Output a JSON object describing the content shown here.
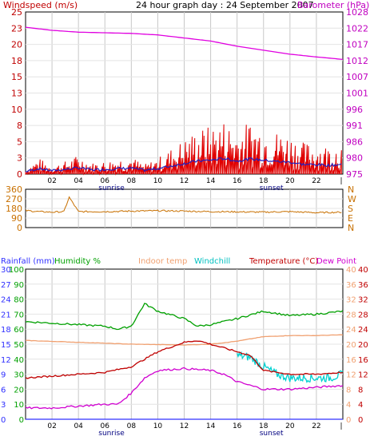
{
  "panel1": {
    "title": "24 hour graph day : 24 September 2007",
    "left_label": "Windspeed (m/s)",
    "right_label": "Barometer (hPa)",
    "left_ticks": [
      "0",
      "3",
      "5",
      "8",
      "10",
      "13",
      "15",
      "18",
      "20",
      "23",
      "25"
    ],
    "right_ticks": [
      "975",
      "980",
      "986",
      "991",
      "996",
      "1001",
      "1007",
      "1012",
      "1017",
      "1022",
      "1028"
    ],
    "colors": {
      "windspeed": "#e00000",
      "average": "#2020c0",
      "barometer": "#e000e0",
      "label_left": "#c00000",
      "label_right": "#c000c0"
    }
  },
  "panel2": {
    "left_ticks": [
      "0",
      "90",
      "180",
      "270",
      "360"
    ],
    "right_ticks": [
      "N",
      "E",
      "S",
      "W",
      "N"
    ],
    "colors": {
      "direction": "#c87000"
    }
  },
  "panel3": {
    "labels": {
      "rainfall": "Rainfall (mm)",
      "humidity": "Humidity %",
      "indoor": "Indoor temp",
      "windchill": "Windchill",
      "temperature": "Temperature (°C)",
      "dewpoint": "Dew Point"
    },
    "rain_ticks": [
      "0",
      "3",
      "6",
      "9",
      "12",
      "15",
      "18",
      "21",
      "24",
      "27",
      "30"
    ],
    "humidity_ticks": [
      "0",
      "10",
      "20",
      "30",
      "40",
      "50",
      "60",
      "70",
      "80",
      "90",
      "100"
    ],
    "temp_ticks": [
      "0",
      "4",
      "8",
      "12",
      "16",
      "20",
      "24",
      "28",
      "32",
      "36",
      "40"
    ],
    "colors": {
      "rainfall": "#3030ff",
      "humidity": "#00a000",
      "indoor": "#f0a070",
      "windchill": "#00d0d0",
      "temperature": "#c00000",
      "dewpoint": "#d000d0"
    }
  },
  "x_axis": {
    "hour_labels": [
      "02",
      "04",
      "06",
      "08",
      "10",
      "12",
      "14",
      "16",
      "18",
      "20",
      "22",
      "|"
    ],
    "sunrise_label": "sunrise",
    "sunset_label": "sunset"
  },
  "chart_data": [
    {
      "type": "line",
      "title": "24 hour graph day : 24 September 2007",
      "series": [
        {
          "name": "Windspeed (m/s)",
          "hours": [
            0,
            1,
            2,
            3,
            4,
            5,
            6,
            7,
            8,
            9,
            10,
            11,
            12,
            13,
            14,
            15,
            16,
            17,
            18,
            19,
            20,
            21,
            22,
            23,
            24
          ],
          "values": [
            0.3,
            1.0,
            0.5,
            0.8,
            1.2,
            0.7,
            0.8,
            1.0,
            1.1,
            0.6,
            1.0,
            1.6,
            2.2,
            2.8,
            3.0,
            3.4,
            2.8,
            3.3,
            3.0,
            2.7,
            2.5,
            2.0,
            1.9,
            1.8,
            2.0
          ]
        },
        {
          "name": "Barometer (hPa)",
          "hours": [
            0,
            2,
            4,
            6,
            8,
            10,
            12,
            14,
            16,
            18,
            20,
            22,
            24
          ],
          "values": [
            1023.0,
            1022.0,
            1021.4,
            1021.2,
            1021.0,
            1020.5,
            1019.5,
            1018.5,
            1016.8,
            1015.5,
            1014.2,
            1013.3,
            1012.5
          ]
        }
      ],
      "left_ylim": [
        0,
        25
      ],
      "right_ylim": [
        975,
        1028
      ]
    },
    {
      "type": "line",
      "series": [
        {
          "name": "Wind direction",
          "hours": [
            0,
            1,
            2,
            2.9,
            3.3,
            4,
            6,
            8,
            10,
            12,
            14,
            16,
            18,
            20,
            22,
            24
          ],
          "values": [
            160,
            150,
            145,
            150,
            285,
            150,
            150,
            155,
            158,
            155,
            150,
            148,
            145,
            150,
            140,
            145
          ]
        }
      ],
      "ylim": [
        0,
        360
      ]
    },
    {
      "type": "line",
      "series": [
        {
          "name": "Humidity %",
          "hours": [
            0,
            2,
            4,
            6,
            7,
            8,
            9,
            10,
            12,
            13,
            14,
            16,
            18,
            20,
            22,
            24
          ],
          "values": [
            65,
            64,
            63,
            62,
            60,
            62,
            77,
            72,
            67,
            62,
            63,
            67,
            72,
            69,
            70,
            72
          ]
        },
        {
          "name": "Indoor temp",
          "hours": [
            0,
            4,
            8,
            12,
            14,
            16,
            18,
            20,
            22,
            24
          ],
          "values": [
            21,
            20.5,
            20,
            19.8,
            20,
            20.8,
            22,
            22.3,
            22.3,
            22.5
          ]
        },
        {
          "name": "Temperature (°C)",
          "hours": [
            0,
            2,
            4,
            6,
            8,
            10,
            12,
            13,
            14,
            15,
            16,
            17,
            18,
            20,
            22,
            24
          ],
          "values": [
            11,
            11.5,
            12,
            12.5,
            14,
            18,
            20.5,
            21,
            20,
            19,
            18,
            17,
            13,
            12,
            12,
            12.5
          ]
        },
        {
          "name": "Windchill",
          "hours": [
            16,
            17,
            18,
            19,
            20,
            21,
            22,
            23,
            24
          ],
          "values": [
            17,
            16.5,
            14,
            12,
            11,
            11,
            11,
            11,
            12
          ]
        },
        {
          "name": "Dew Point",
          "hours": [
            0,
            2,
            4,
            6,
            7,
            8,
            9,
            10,
            12,
            14,
            15,
            16,
            18,
            20,
            22,
            24
          ],
          "values": [
            3,
            3,
            3.5,
            4,
            4,
            7,
            11,
            13,
            13.5,
            13,
            12,
            10,
            8,
            8,
            8.5,
            9
          ]
        },
        {
          "name": "Rainfall (mm)",
          "hours": [
            0,
            24
          ],
          "values": [
            0,
            0
          ]
        }
      ],
      "temp_ylim": [
        0,
        40
      ],
      "humidity_ylim": [
        0,
        100
      ],
      "rain_ylim": [
        0,
        30
      ]
    }
  ]
}
